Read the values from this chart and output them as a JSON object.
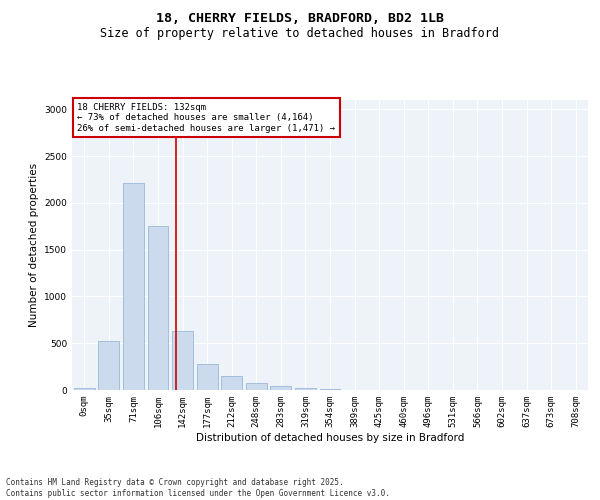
{
  "title_line1": "18, CHERRY FIELDS, BRADFORD, BD2 1LB",
  "title_line2": "Size of property relative to detached houses in Bradford",
  "xlabel": "Distribution of detached houses by size in Bradford",
  "ylabel": "Number of detached properties",
  "categories": [
    "0sqm",
    "35sqm",
    "71sqm",
    "106sqm",
    "142sqm",
    "177sqm",
    "212sqm",
    "248sqm",
    "283sqm",
    "319sqm",
    "354sqm",
    "389sqm",
    "425sqm",
    "460sqm",
    "496sqm",
    "531sqm",
    "566sqm",
    "602sqm",
    "637sqm",
    "673sqm",
    "708sqm"
  ],
  "values": [
    20,
    520,
    2210,
    1750,
    635,
    280,
    155,
    80,
    40,
    25,
    15,
    5,
    5,
    2,
    0,
    0,
    0,
    0,
    0,
    0,
    0
  ],
  "bar_color": "#ccdaed",
  "bar_edge_color": "#8aafd4",
  "vline_x": 3.73,
  "vline_color": "#cc0000",
  "annotation_box_text": "18 CHERRY FIELDS: 132sqm\n← 73% of detached houses are smaller (4,164)\n26% of semi-detached houses are larger (1,471) →",
  "annotation_box_color": "#cc0000",
  "footnote": "Contains HM Land Registry data © Crown copyright and database right 2025.\nContains public sector information licensed under the Open Government Licence v3.0.",
  "ylim": [
    0,
    3100
  ],
  "yticks": [
    0,
    500,
    1000,
    1500,
    2000,
    2500,
    3000
  ],
  "plot_bg_color": "#eef2f9",
  "title_fontsize": 9.5,
  "subtitle_fontsize": 8.5,
  "axis_label_fontsize": 7.5,
  "tick_fontsize": 6.5,
  "footnote_fontsize": 5.5
}
